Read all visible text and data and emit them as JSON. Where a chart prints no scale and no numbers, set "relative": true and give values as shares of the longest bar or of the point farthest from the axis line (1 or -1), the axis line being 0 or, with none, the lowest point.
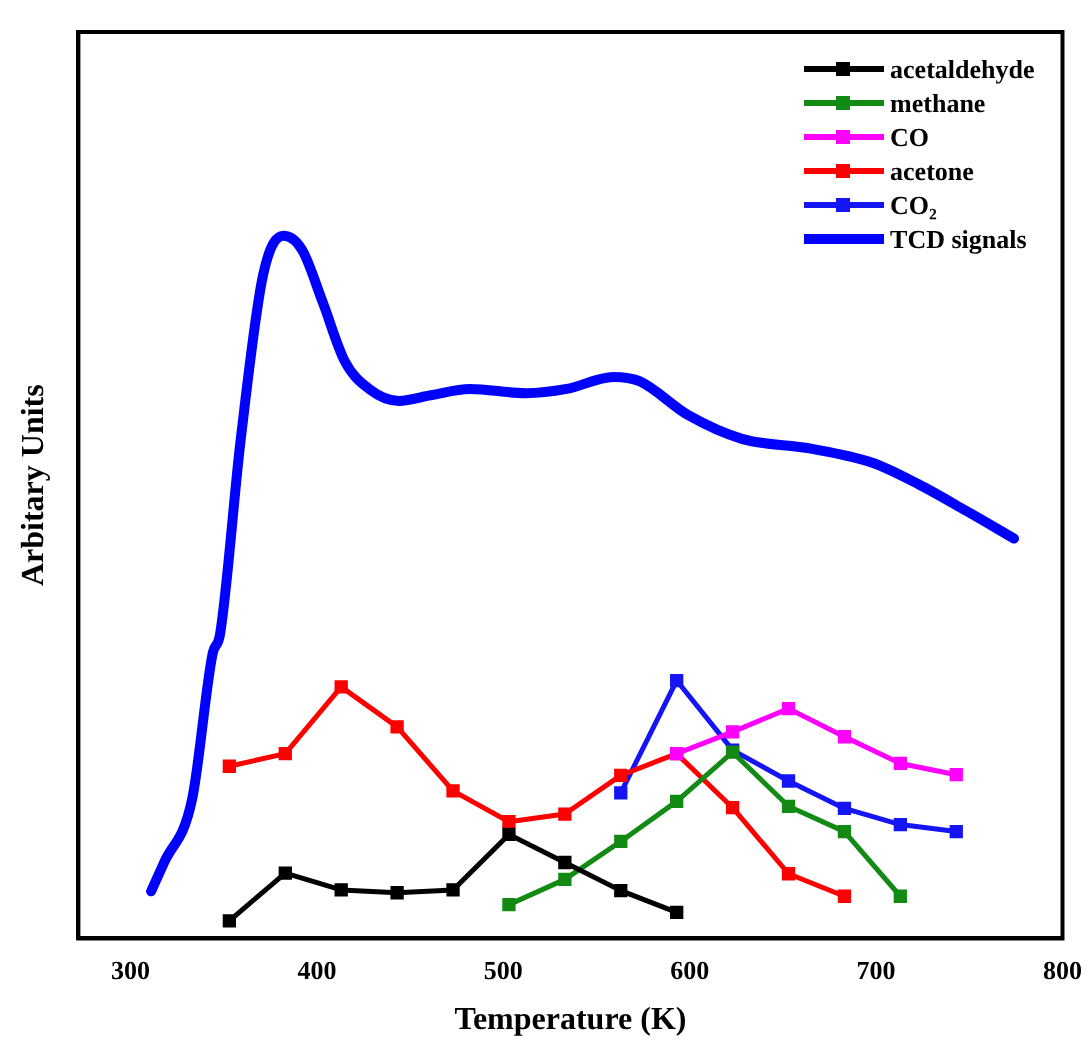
{
  "chart_data": {
    "type": "line",
    "relative": true,
    "xlabel": "Temperature (K)",
    "ylabel": "Arbitary Units",
    "xlim": [
      272,
      800
    ],
    "xticks": [
      300,
      400,
      500,
      600,
      700,
      800
    ],
    "legend": "top right",
    "marker": "square",
    "grid": false,
    "series": [
      {
        "name": "acetaldehyde",
        "color": "#000000",
        "x": [
          353,
          383,
          413,
          443,
          473,
          503,
          533,
          563,
          593
        ],
        "values": [
          0.025,
          0.093,
          0.069,
          0.065,
          0.069,
          0.148,
          0.108,
          0.068,
          0.037
        ]
      },
      {
        "name": "methane",
        "color": "#138a13",
        "x": [
          503,
          533,
          563,
          593,
          623,
          653,
          683,
          713
        ],
        "values": [
          0.048,
          0.084,
          0.138,
          0.195,
          0.265,
          0.188,
          0.152,
          0.06
        ]
      },
      {
        "name": "CO",
        "color": "#ff00ff",
        "x": [
          593,
          623,
          653,
          683,
          713,
          743
        ],
        "values": [
          0.263,
          0.294,
          0.327,
          0.287,
          0.249,
          0.233
        ]
      },
      {
        "name": "acetone",
        "color": "#ff0000",
        "x": [
          353,
          383,
          413,
          443,
          473,
          503,
          533,
          563,
          593,
          623,
          653,
          683
        ],
        "values": [
          0.245,
          0.263,
          0.358,
          0.301,
          0.21,
          0.166,
          0.177,
          0.232,
          0.263,
          0.186,
          0.092,
          0.06
        ]
      },
      {
        "name": "CO₂",
        "color": "#1414f5",
        "x": [
          563,
          593,
          623,
          653,
          683,
          713,
          743
        ],
        "values": [
          0.207,
          0.367,
          0.268,
          0.224,
          0.185,
          0.162,
          0.152
        ]
      },
      {
        "name": "TCD signals",
        "color": "#0000ff",
        "marker": "none",
        "x": [
          311,
          318,
          333,
          344,
          348,
          359,
          371,
          382,
          392,
          403,
          415,
          428,
          444,
          461,
          482,
          512,
          534,
          559,
          573,
          599,
          628,
          665,
          698,
          723,
          748,
          774
        ],
        "values": [
          0.067,
          0.108,
          0.198,
          0.405,
          0.433,
          0.708,
          0.943,
          1.0,
          0.98,
          0.906,
          0.821,
          0.782,
          0.765,
          0.773,
          0.782,
          0.776,
          0.782,
          0.799,
          0.793,
          0.745,
          0.711,
          0.697,
          0.677,
          0.646,
          0.609,
          0.569
        ]
      }
    ]
  }
}
